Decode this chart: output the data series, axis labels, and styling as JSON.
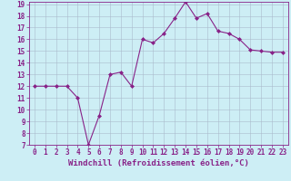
{
  "x": [
    0,
    1,
    2,
    3,
    4,
    5,
    6,
    7,
    8,
    9,
    10,
    11,
    12,
    13,
    14,
    15,
    16,
    17,
    18,
    19,
    20,
    21,
    22,
    23
  ],
  "y": [
    12,
    12,
    12,
    12,
    11,
    7,
    9.5,
    13,
    13.2,
    12,
    16,
    15.7,
    16.5,
    17.8,
    19.2,
    17.8,
    18.2,
    16.7,
    16.5,
    16,
    15.1,
    15,
    14.9,
    14.9
  ],
  "line_color": "#882288",
  "marker": "D",
  "marker_size": 2.0,
  "bg_color": "#cdeef5",
  "grid_color": "#aabbcc",
  "xlabel": "Windchill (Refroidissement éolien,°C)",
  "ylabel": "",
  "ylim": [
    7,
    19
  ],
  "xlim": [
    -0.5,
    23.5
  ],
  "yticks": [
    7,
    8,
    9,
    10,
    11,
    12,
    13,
    14,
    15,
    16,
    17,
    18,
    19
  ],
  "xticks": [
    0,
    1,
    2,
    3,
    4,
    5,
    6,
    7,
    8,
    9,
    10,
    11,
    12,
    13,
    14,
    15,
    16,
    17,
    18,
    19,
    20,
    21,
    22,
    23
  ],
  "tick_color": "#882288",
  "label_color": "#882288",
  "tick_fontsize": 5.5,
  "xlabel_fontsize": 6.5
}
